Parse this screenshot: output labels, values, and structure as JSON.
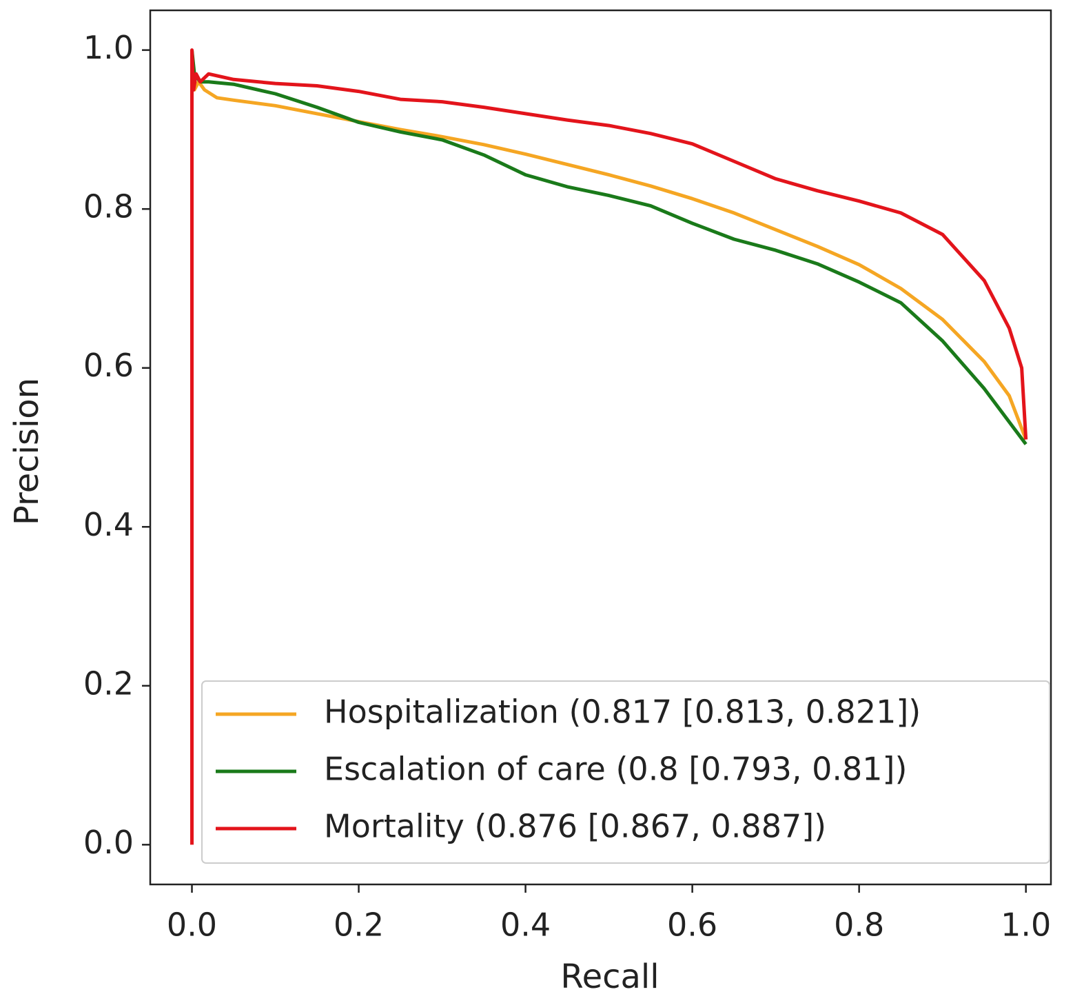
{
  "chart_data": {
    "type": "line",
    "xlabel": "Recall",
    "ylabel": "Precision",
    "xlim": [
      -0.05,
      1.03
    ],
    "ylim": [
      -0.05,
      1.05
    ],
    "xticks": [
      {
        "value": 0,
        "label": "0.0"
      },
      0.2,
      0.4,
      0.6,
      0.8,
      {
        "value": 1,
        "label": "1.0"
      }
    ],
    "yticks": [
      {
        "value": 0,
        "label": "0.0"
      },
      0.2,
      0.4,
      0.6,
      0.8,
      {
        "value": 1,
        "label": "1.0"
      }
    ],
    "legend": "lower right",
    "series": [
      {
        "name": "Hospitalization (0.817 [0.813, 0.821])",
        "color": "#f5a623",
        "x": [
          0,
          0.003,
          0.008,
          0.015,
          0.03,
          0.05,
          0.1,
          0.15,
          0.2,
          0.25,
          0.3,
          0.35,
          0.4,
          0.45,
          0.5,
          0.55,
          0.6,
          0.65,
          0.7,
          0.75,
          0.8,
          0.85,
          0.9,
          0.95,
          0.98,
          1.0
        ],
        "values": [
          1.0,
          0.95,
          0.96,
          0.95,
          0.94,
          0.937,
          0.93,
          0.92,
          0.91,
          0.9,
          0.891,
          0.881,
          0.869,
          0.856,
          0.843,
          0.829,
          0.813,
          0.795,
          0.774,
          0.753,
          0.73,
          0.7,
          0.661,
          0.608,
          0.565,
          0.51
        ]
      },
      {
        "name": "Escalation of care (0.8 [0.793, 0.81])",
        "color": "#1a7a1a",
        "x": [
          0,
          0.003,
          0.01,
          0.02,
          0.05,
          0.1,
          0.15,
          0.2,
          0.25,
          0.3,
          0.35,
          0.4,
          0.45,
          0.5,
          0.55,
          0.6,
          0.65,
          0.7,
          0.75,
          0.8,
          0.85,
          0.9,
          0.95,
          1.0
        ],
        "values": [
          1.0,
          0.97,
          0.96,
          0.96,
          0.957,
          0.945,
          0.928,
          0.909,
          0.897,
          0.887,
          0.868,
          0.843,
          0.828,
          0.817,
          0.804,
          0.782,
          0.762,
          0.748,
          0.731,
          0.708,
          0.682,
          0.634,
          0.574,
          0.504
        ]
      },
      {
        "name": "Mortality (0.876 [0.867, 0.887])",
        "color": "#e3141b",
        "x": [
          0,
          0,
          0.002,
          0.005,
          0.01,
          0.02,
          0.05,
          0.1,
          0.15,
          0.2,
          0.25,
          0.3,
          0.35,
          0.4,
          0.45,
          0.5,
          0.55,
          0.6,
          0.65,
          0.7,
          0.75,
          0.8,
          0.85,
          0.9,
          0.95,
          0.98,
          0.995,
          1.0
        ],
        "values": [
          0.0,
          1.0,
          0.95,
          0.97,
          0.96,
          0.97,
          0.963,
          0.958,
          0.955,
          0.948,
          0.938,
          0.935,
          0.928,
          0.92,
          0.912,
          0.905,
          0.895,
          0.882,
          0.86,
          0.838,
          0.823,
          0.81,
          0.795,
          0.768,
          0.71,
          0.65,
          0.6,
          0.51
        ]
      }
    ]
  }
}
